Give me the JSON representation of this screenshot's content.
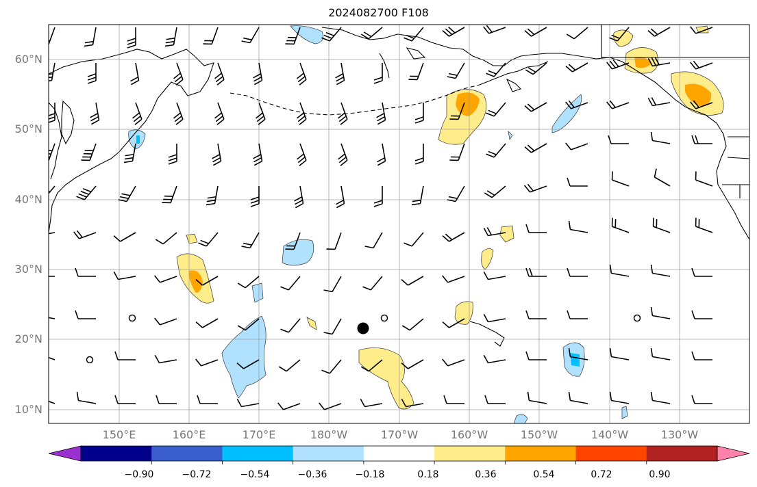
{
  "title": "2024082700 F108",
  "map": {
    "region": "North Pacific",
    "lat_labels": [
      "10°N",
      "20°N",
      "30°N",
      "40°N",
      "50°N",
      "60°N"
    ],
    "lon_labels": [
      "150°E",
      "160°E",
      "170°E",
      "180°W",
      "170°W",
      "160°W",
      "150°W",
      "140°W",
      "130°W"
    ],
    "feature_icons": [
      "wind-barbs",
      "coastline",
      "state-borders",
      "station-marker"
    ]
  },
  "colorbar": {
    "tick_labels": [
      "−0.90",
      "−0.72",
      "−0.54",
      "−0.36",
      "−0.18",
      "0.18",
      "0.36",
      "0.54",
      "0.72",
      "0.90"
    ],
    "colors": [
      "#9b30d0",
      "#00008b",
      "#3a5fcd",
      "#00bfff",
      "#b0e2ff",
      "#ffffff",
      "#ffec8b",
      "#ffa500",
      "#ff4500",
      "#b22222",
      "#ff82ab"
    ],
    "extend": "both"
  }
}
